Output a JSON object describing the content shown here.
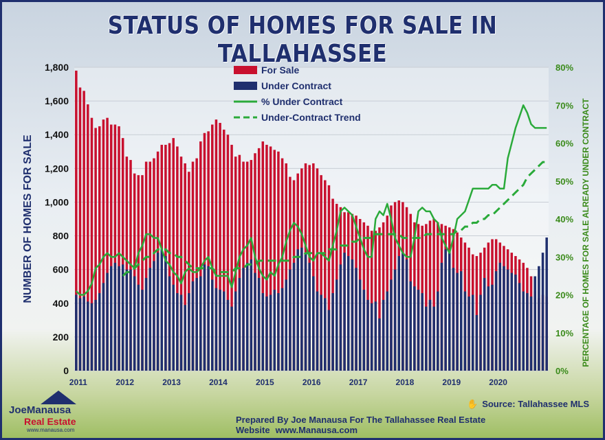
{
  "title": "STATUS OF HOMES FOR SALE IN TALLAHASSEE",
  "source": {
    "icon": "hand-icon",
    "label": "Source: Tallahassee MLS"
  },
  "footer": {
    "prepared_by": "Prepared By Joe Manausa For The Tallahassee Real Estate Website",
    "url": "www.Manausa.com"
  },
  "logo": {
    "name_part1": "Joe",
    "name_part2": "Manausa",
    "line2": "Real Estate",
    "url": "www.manausa.com"
  },
  "colors": {
    "for_sale": "#c8102e",
    "under_contract": "#1f2f6e",
    "pct_line": "#2aaa3a",
    "axis_right": "#3a8a1a"
  },
  "chart_data": {
    "type": "bar",
    "ylabel": "NUMBER OF HOMES FOR SALE",
    "ylabel_right": "PERCENTAGE OF HOMES FOR SALE ALREADY UNDER CONTRACT",
    "ylim": [
      0,
      1800
    ],
    "ylim_right": [
      0,
      80
    ],
    "y_ticks": [
      "0",
      "200",
      "400",
      "600",
      "800",
      "1,000",
      "1,200",
      "1,400",
      "1,600",
      "1,800"
    ],
    "y_ticks_right": [
      "0%",
      "10%",
      "20%",
      "30%",
      "40%",
      "50%",
      "60%",
      "70%",
      "80%"
    ],
    "x_ticks": [
      "2011",
      "2012",
      "2013",
      "2014",
      "2015",
      "2016",
      "2017",
      "2018",
      "2019",
      "2020"
    ],
    "legend": [
      "For Sale",
      "Under Contract",
      "% Under Contract",
      "Under-Contract Trend"
    ],
    "months": 122,
    "series": [
      {
        "name": "For Sale",
        "values": [
          1780,
          1680,
          1660,
          1580,
          1500,
          1440,
          1450,
          1490,
          1500,
          1460,
          1460,
          1450,
          1380,
          1270,
          1250,
          1170,
          1160,
          1160,
          1240,
          1240,
          1260,
          1300,
          1340,
          1340,
          1350,
          1380,
          1330,
          1270,
          1230,
          1180,
          1240,
          1260,
          1360,
          1410,
          1420,
          1460,
          1490,
          1470,
          1430,
          1400,
          1340,
          1270,
          1280,
          1240,
          1240,
          1250,
          1290,
          1320,
          1360,
          1340,
          1330,
          1310,
          1300,
          1260,
          1230,
          1150,
          1130,
          1170,
          1200,
          1230,
          1220,
          1230,
          1200,
          1160,
          1130,
          1100,
          1020,
          990,
          970,
          940,
          940,
          930,
          920,
          900,
          880,
          860,
          830,
          830,
          850,
          880,
          920,
          980,
          1000,
          1010,
          1000,
          970,
          930,
          880,
          870,
          860,
          870,
          890,
          900,
          880,
          870,
          860,
          850,
          840,
          820,
          790,
          760,
          730,
          690,
          680,
          700,
          730,
          760,
          780,
          780,
          760,
          740,
          720,
          700,
          680,
          660,
          640,
          610,
          560,
          470,
          430,
          450,
          440
        ]
      },
      {
        "name": "Under Contract",
        "values": [
          450,
          430,
          440,
          410,
          400,
          420,
          460,
          520,
          580,
          620,
          640,
          620,
          630,
          600,
          600,
          560,
          510,
          480,
          550,
          610,
          650,
          700,
          720,
          680,
          560,
          510,
          460,
          450,
          390,
          460,
          530,
          550,
          560,
          630,
          620,
          540,
          490,
          480,
          470,
          420,
          380,
          470,
          550,
          610,
          640,
          660,
          580,
          550,
          460,
          440,
          450,
          480,
          460,
          490,
          540,
          600,
          640,
          720,
          730,
          700,
          640,
          560,
          470,
          450,
          430,
          360,
          460,
          540,
          630,
          700,
          680,
          660,
          610,
          540,
          480,
          420,
          400,
          410,
          310,
          420,
          470,
          540,
          600,
          680,
          700,
          660,
          530,
          500,
          480,
          460,
          380,
          420,
          380,
          470,
          640,
          720,
          700,
          610,
          580,
          590,
          470,
          440,
          450,
          330,
          450,
          550,
          500,
          510,
          590,
          640,
          620,
          600,
          580,
          570,
          520,
          470,
          460,
          440,
          560,
          620,
          700,
          790
        ]
      },
      {
        "name": "% Under Contract",
        "values": [
          21,
          20,
          20,
          21,
          23,
          27,
          28,
          30,
          31,
          30,
          30,
          31,
          30,
          29,
          28,
          27,
          31,
          33,
          36,
          36,
          35,
          35,
          32,
          29,
          28,
          26,
          25,
          23,
          26,
          27,
          26,
          26,
          27,
          29,
          30,
          27,
          25,
          25,
          25,
          25,
          22,
          26,
          30,
          32,
          33,
          35,
          30,
          27,
          25,
          24,
          26,
          25,
          28,
          30,
          34,
          37,
          39,
          38,
          36,
          33,
          30,
          29,
          31,
          31,
          30,
          29,
          33,
          37,
          42,
          43,
          42,
          41,
          38,
          35,
          32,
          30,
          30,
          40,
          42,
          41,
          44,
          40,
          35,
          33,
          31,
          30,
          30,
          35,
          42,
          43,
          42,
          42,
          40,
          39,
          35,
          33,
          31,
          35,
          40,
          41,
          42,
          45,
          48,
          48,
          48,
          48,
          48,
          49,
          49,
          48,
          48,
          56,
          60,
          64,
          67,
          70,
          68,
          65,
          64,
          64,
          64,
          64
        ]
      },
      {
        "name": "Under-Contract Trend",
        "values": [
          null,
          null,
          null,
          null,
          null,
          null,
          null,
          null,
          null,
          null,
          null,
          null,
          25,
          26,
          26,
          27,
          28,
          29,
          30,
          30,
          31,
          32,
          32,
          32,
          31,
          31,
          30,
          30,
          29,
          28,
          27,
          27,
          27,
          27,
          27,
          27,
          26,
          26,
          26,
          26,
          26,
          27,
          27,
          27,
          28,
          28,
          28,
          29,
          29,
          29,
          29,
          29,
          29,
          29,
          29,
          29,
          30,
          30,
          30,
          31,
          31,
          31,
          31,
          31,
          31,
          32,
          32,
          32,
          33,
          33,
          33,
          34,
          34,
          35,
          35,
          35,
          35,
          36,
          36,
          36,
          36,
          36,
          36,
          36,
          35,
          35,
          35,
          35,
          35,
          35,
          36,
          36,
          36,
          36,
          36,
          36,
          36,
          36,
          37,
          37,
          38,
          38,
          39,
          39,
          40,
          40,
          41,
          41,
          42,
          43,
          44,
          45,
          46,
          47,
          48,
          49,
          51,
          52,
          53,
          54,
          55,
          55
        ]
      }
    ]
  }
}
